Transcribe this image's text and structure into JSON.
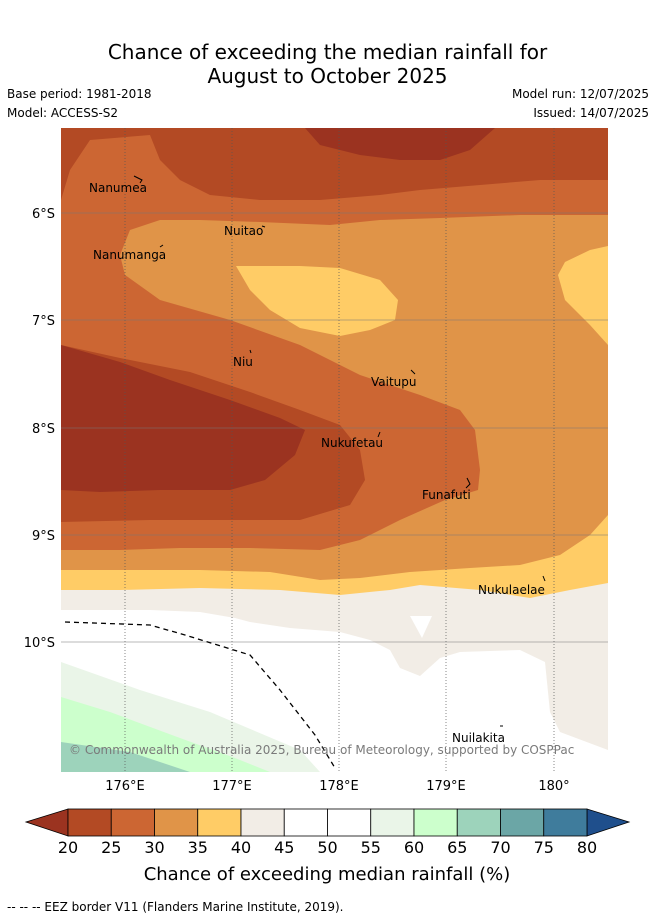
{
  "title_line1": "Chance of exceeding the median rainfall for",
  "title_line2": "August to October 2025",
  "base_period": "Base period: 1981-2018",
  "model": "Model: ACCESS-S2",
  "model_run": "Model run: 12/07/2025",
  "issued": "Issued: 14/07/2025",
  "copyright": "© Commonwealth of Australia 2025, Bureau of Meteorology, supported by COSPPac",
  "footer": "--  --  -- EEZ border V11 (Flanders Marine Institute, 2019).",
  "map": {
    "lat_labels": [
      "6°S",
      "7°S",
      "8°S",
      "9°S",
      "10°S"
    ],
    "lon_labels": [
      "176°E",
      "177°E",
      "178°E",
      "179°E",
      "180°"
    ],
    "places": [
      {
        "name": "Nanumea"
      },
      {
        "name": "Nuitao"
      },
      {
        "name": "Nanumanga"
      },
      {
        "name": "Niu"
      },
      {
        "name": "Vaitupu"
      },
      {
        "name": "Nukufetau"
      },
      {
        "name": "Funafuti"
      },
      {
        "name": "Nukulaelae"
      },
      {
        "name": "Nuilakita"
      }
    ]
  },
  "colorbar": {
    "title": "Chance of exceeding median rainfall (%)",
    "ticks": [
      "20",
      "25",
      "30",
      "35",
      "40",
      "45",
      "50",
      "55",
      "60",
      "65",
      "70",
      "75",
      "80"
    ],
    "colors": [
      "#9b3320",
      "#b34a24",
      "#cc6633",
      "#e09448",
      "#ffcc66",
      "#f2ede6",
      "#ffffff",
      "#ffffff",
      "#eaf5e8",
      "#ccffcc",
      "#9dd3bb",
      "#6ba6a6",
      "#3f7c9c",
      "#1f4f8c"
    ],
    "under_color": "#9b3320",
    "over_color": "#1f4f8c"
  }
}
